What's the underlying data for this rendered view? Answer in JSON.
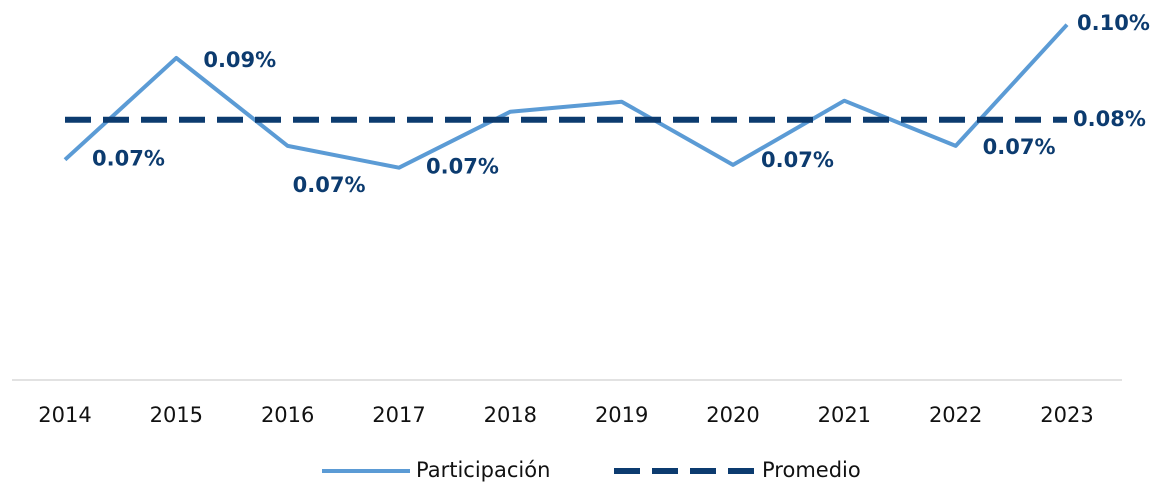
{
  "chart_data": {
    "type": "line",
    "categories": [
      "2014",
      "2015",
      "2016",
      "2017",
      "2018",
      "2019",
      "2020",
      "2021",
      "2022",
      "2023"
    ],
    "series": [
      {
        "name": "Participación",
        "color": "#5b9bd5",
        "dash": false,
        "values": [
          0.0716,
          0.093,
          0.0745,
          0.0699,
          0.0817,
          0.0838,
          0.0705,
          0.084,
          0.0745,
          0.1
        ],
        "value_labels": [
          "0.07%",
          "0.09%",
          "0.07%",
          "0.07%",
          null,
          null,
          "0.07%",
          null,
          "0.07%",
          "0.10%"
        ]
      },
      {
        "name": "Promedio",
        "color": "#0c3b6f",
        "dash": true,
        "values": [
          0.08,
          0.08,
          0.08,
          0.08,
          0.08,
          0.08,
          0.08,
          0.08,
          0.08,
          0.08
        ],
        "value_labels": [
          null,
          null,
          null,
          null,
          null,
          null,
          null,
          null,
          null,
          "0.08%"
        ]
      }
    ],
    "ylim": [
      0.025,
      0.105
    ],
    "legend": "bottom"
  }
}
